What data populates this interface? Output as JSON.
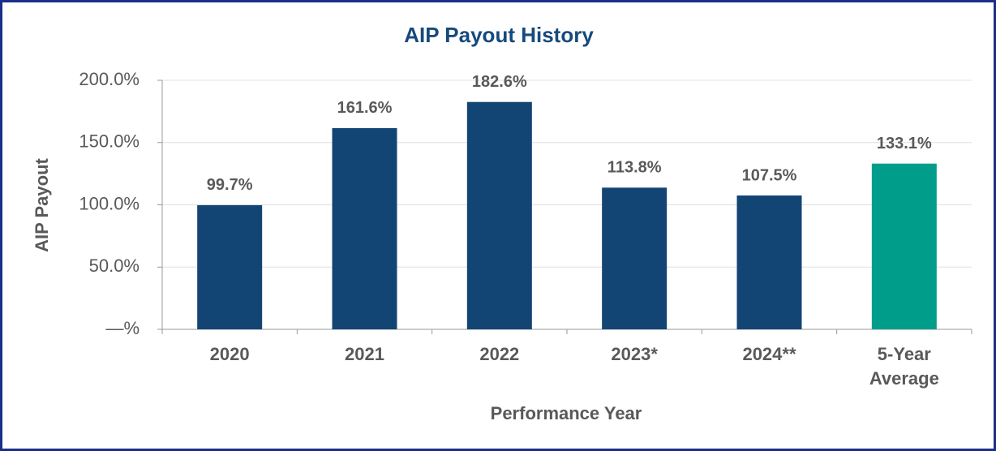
{
  "chart_data": {
    "type": "bar",
    "title": "AIP Payout History",
    "x_label": "Performance Year",
    "y_label": "AIP Payout",
    "categories": [
      "2020",
      "2021",
      "2022",
      "2023*",
      "2024**",
      "5-Year Average"
    ],
    "values": [
      99.7,
      161.6,
      182.6,
      113.8,
      107.5,
      133.1
    ],
    "value_labels": [
      "99.7%",
      "161.6%",
      "182.6%",
      "113.8%",
      "107.5%",
      "133.1%"
    ],
    "colors": [
      "#134574",
      "#134574",
      "#134574",
      "#134574",
      "#134574",
      "#009e8a"
    ],
    "ylim": [
      0,
      200
    ],
    "yticks": [
      {
        "value": 0,
        "label": "—%"
      },
      {
        "value": 50,
        "label": "50.0%"
      },
      {
        "value": 100,
        "label": "100.0%"
      },
      {
        "value": 150,
        "label": "150.0%"
      },
      {
        "value": 200,
        "label": "200.0%"
      }
    ],
    "grid": true
  }
}
